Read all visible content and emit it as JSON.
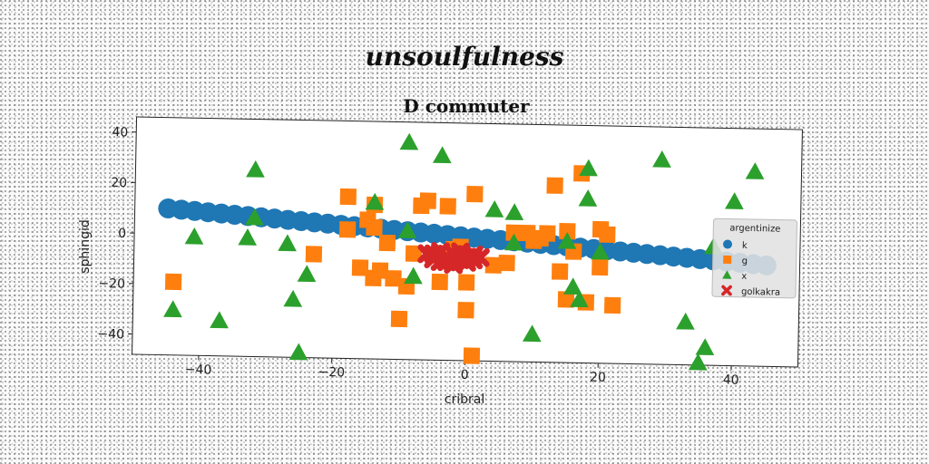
{
  "chart_data": {
    "type": "scatter",
    "suptitle": "unsoulfulness",
    "title": "D commuter",
    "xlabel": "cribral",
    "ylabel": "sphingid",
    "xlim": [
      -50,
      50
    ],
    "ylim": [
      -48,
      46
    ],
    "xticks": [
      -40,
      -20,
      0,
      20,
      40
    ],
    "yticks": [
      -40,
      -20,
      0,
      20,
      40
    ],
    "xtick_labels": [
      "−40",
      "−20",
      "0",
      "20",
      "40"
    ],
    "ytick_labels": [
      "−40",
      "−20",
      "0",
      "20",
      "40"
    ],
    "legend": {
      "title": "argentinize",
      "placement": "right"
    },
    "series": [
      {
        "name": "k",
        "marker": "circle",
        "color": "#1f77b4",
        "points": [
          [
            -45,
            10
          ],
          [
            -43,
            9.6
          ],
          [
            -41,
            9.2
          ],
          [
            -39,
            8.8
          ],
          [
            -37,
            8.4
          ],
          [
            -35,
            8
          ],
          [
            -33,
            7.6
          ],
          [
            -31,
            7.2
          ],
          [
            -29,
            6.8
          ],
          [
            -27,
            6.4
          ],
          [
            -25,
            6
          ],
          [
            -23,
            5.6
          ],
          [
            -21,
            5.2
          ],
          [
            -19,
            4.8
          ],
          [
            -17,
            4.4
          ],
          [
            -15,
            4
          ],
          [
            -13,
            3.6
          ],
          [
            -11,
            3.2
          ],
          [
            -9,
            2.8
          ],
          [
            -7,
            2.4
          ],
          [
            -5,
            2
          ],
          [
            -3,
            1.6
          ],
          [
            -1,
            1.2
          ],
          [
            1,
            0.8
          ],
          [
            3,
            0.4
          ],
          [
            5,
            0
          ],
          [
            7,
            -0.4
          ],
          [
            9,
            -0.8
          ],
          [
            11,
            -1.2
          ],
          [
            13,
            -1.6
          ],
          [
            15,
            -2
          ],
          [
            17,
            -2.4
          ],
          [
            19,
            -2.8
          ],
          [
            21,
            -3.2
          ],
          [
            23,
            -3.6
          ],
          [
            25,
            -4
          ],
          [
            27,
            -4.4
          ],
          [
            29,
            -4.8
          ],
          [
            31,
            -5.2
          ],
          [
            33,
            -5.6
          ],
          [
            35,
            -6
          ],
          [
            37,
            -6.4
          ],
          [
            39,
            -6.8
          ],
          [
            41,
            -7.2
          ],
          [
            43,
            -7.6
          ],
          [
            45,
            -8
          ]
        ]
      },
      {
        "name": "g",
        "marker": "square",
        "color": "#ff7f0e",
        "points": [
          [
            -44,
            -19
          ],
          [
            -23,
            -7
          ],
          [
            -18,
            16
          ],
          [
            -18,
            3
          ],
          [
            -16,
            -12
          ],
          [
            -15,
            7
          ],
          [
            -14,
            13
          ],
          [
            -14,
            4
          ],
          [
            -14,
            -16
          ],
          [
            -13,
            -13
          ],
          [
            -12,
            -2
          ],
          [
            -11,
            -16
          ],
          [
            -10,
            -32
          ],
          [
            -9,
            -19
          ],
          [
            -8,
            -6
          ],
          [
            -7,
            13
          ],
          [
            -6,
            15
          ],
          [
            -4,
            -17
          ],
          [
            -3,
            13
          ],
          [
            -2,
            -4
          ],
          [
            -1,
            -3
          ],
          [
            0,
            -28
          ],
          [
            0,
            -17
          ],
          [
            1,
            -46
          ],
          [
            1,
            18
          ],
          [
            4,
            -10
          ],
          [
            6,
            -9
          ],
          [
            7,
            3
          ],
          [
            9,
            3
          ],
          [
            10,
            0
          ],
          [
            11,
            1
          ],
          [
            12,
            3
          ],
          [
            13,
            22
          ],
          [
            14,
            -12
          ],
          [
            15,
            4
          ],
          [
            15,
            -23
          ],
          [
            16,
            -4
          ],
          [
            17,
            27
          ],
          [
            18,
            -24
          ],
          [
            20,
            5
          ],
          [
            20,
            -10
          ],
          [
            21,
            3
          ],
          [
            22,
            -25
          ]
        ]
      },
      {
        "name": "x",
        "marker": "triangle",
        "color": "#2ca02c",
        "points": [
          [
            -44,
            -30
          ],
          [
            -41,
            -1
          ],
          [
            -37,
            -34
          ],
          [
            -32,
            26
          ],
          [
            -32,
            7
          ],
          [
            -33,
            -1
          ],
          [
            -27,
            -3
          ],
          [
            -26,
            -25
          ],
          [
            -25,
            -46
          ],
          [
            -24,
            -15
          ],
          [
            -14,
            14
          ],
          [
            -9,
            38
          ],
          [
            -9,
            3
          ],
          [
            -8,
            -15
          ],
          [
            -4,
            33
          ],
          [
            4,
            12
          ],
          [
            7,
            -1
          ],
          [
            7,
            11
          ],
          [
            10,
            -37
          ],
          [
            15,
            0
          ],
          [
            16,
            -18
          ],
          [
            17,
            -23
          ],
          [
            18,
            29
          ],
          [
            18,
            17
          ],
          [
            20,
            -4
          ],
          [
            29,
            33
          ],
          [
            33,
            -31
          ],
          [
            35,
            -47
          ],
          [
            36,
            -41
          ],
          [
            37,
            -1
          ],
          [
            40,
            17
          ],
          [
            43,
            29
          ]
        ]
      },
      {
        "name": "golkakra",
        "marker": "x",
        "color": "#d62728",
        "points": [
          [
            -6,
            -6
          ],
          [
            -5,
            -8
          ],
          [
            -4,
            -5
          ],
          [
            -3,
            -7
          ],
          [
            -3,
            -9
          ],
          [
            -2,
            -6
          ],
          [
            -1,
            -8
          ],
          [
            -1,
            -5
          ],
          [
            0,
            -7
          ],
          [
            0,
            -9
          ],
          [
            1,
            -6
          ],
          [
            1,
            -8
          ],
          [
            2,
            -7
          ],
          [
            -4,
            -9
          ],
          [
            -2,
            -10
          ],
          [
            -5,
            -6
          ]
        ]
      }
    ]
  }
}
